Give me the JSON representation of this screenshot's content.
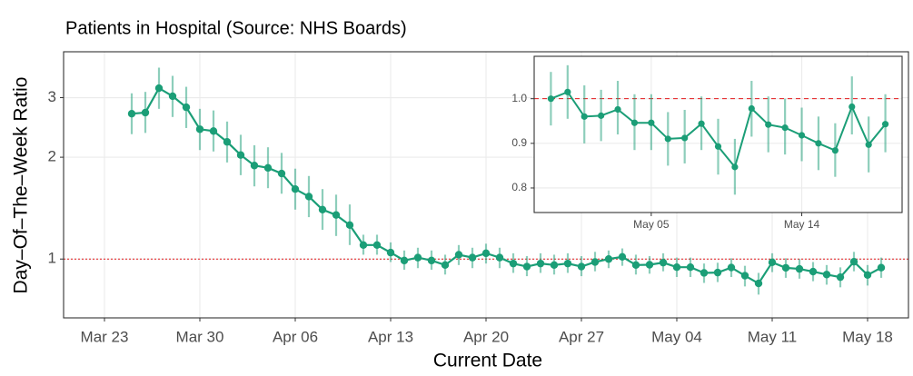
{
  "chart_data": [
    {
      "type": "line",
      "title": "Patients in Hospital (Source: NHS Boards)",
      "xlabel": "Current Date",
      "ylabel": "Day–Of–The–Week Ratio",
      "log_y": true,
      "grid": true,
      "color": "#1b9e77",
      "hline": 1,
      "xlim": [
        "Mar 20",
        "May 21"
      ],
      "xticks": [
        "Mar 23",
        "Mar 30",
        "Apr 06",
        "Apr 13",
        "Apr 20",
        "Apr 27",
        "May 04",
        "May 11",
        "May 18"
      ],
      "ylim": [
        0.67,
        4.1
      ],
      "yticks": [
        1,
        2,
        3
      ],
      "x": [
        "Mar 25",
        "Mar 26",
        "Mar 27",
        "Mar 28",
        "Mar 29",
        "Mar 30",
        "Mar 31",
        "Apr 1",
        "Apr 2",
        "Apr 3",
        "Apr 4",
        "Apr 5",
        "Apr 6",
        "Apr 7",
        "Apr 8",
        "Apr 9",
        "Apr 10",
        "Apr 11",
        "Apr 12",
        "Apr 13",
        "Apr 14",
        "Apr 15",
        "Apr 16",
        "Apr 17",
        "Apr 18",
        "Apr 19",
        "Apr 20",
        "Apr 21",
        "Apr 22",
        "Apr 23",
        "Apr 24",
        "Apr 25",
        "Apr 26",
        "Apr 27",
        "Apr 28",
        "Apr 29",
        "Apr 30",
        "May 1",
        "May 2",
        "May 3",
        "May 4",
        "May 5",
        "May 6",
        "May 7",
        "May 8",
        "May 9",
        "May 10",
        "May 11",
        "May 12",
        "May 13",
        "May 14",
        "May 15",
        "May 16",
        "May 17",
        "May 18",
        "May 19"
      ],
      "values": [
        2.69,
        2.71,
        3.2,
        3.03,
        2.81,
        2.42,
        2.39,
        2.22,
        2.03,
        1.89,
        1.86,
        1.79,
        1.61,
        1.53,
        1.4,
        1.35,
        1.26,
        1.1,
        1.1,
        1.045,
        0.99,
        1.01,
        0.99,
        0.96,
        1.03,
        1.01,
        1.04,
        1.01,
        0.97,
        0.95,
        0.97,
        0.96,
        0.97,
        0.95,
        0.98,
        1.0,
        1.015,
        0.96,
        0.962,
        0.976,
        0.946,
        0.946,
        0.91,
        0.912,
        0.944,
        0.893,
        0.847,
        0.978,
        0.942,
        0.935,
        0.918,
        0.9,
        0.884,
        0.982,
        0.897,
        0.943
      ],
      "lower": [
        2.34,
        2.36,
        2.78,
        2.63,
        2.44,
        2.1,
        2.08,
        1.93,
        1.77,
        1.64,
        1.62,
        1.56,
        1.4,
        1.33,
        1.22,
        1.17,
        1.1,
        1.03,
        1.03,
        0.98,
        0.93,
        0.94,
        0.93,
        0.9,
        0.96,
        0.94,
        0.97,
        0.94,
        0.91,
        0.89,
        0.91,
        0.9,
        0.91,
        0.89,
        0.92,
        0.94,
        0.955,
        0.9,
        0.905,
        0.92,
        0.885,
        0.885,
        0.85,
        0.855,
        0.885,
        0.83,
        0.785,
        0.915,
        0.88,
        0.875,
        0.86,
        0.84,
        0.825,
        0.92,
        0.835,
        0.88
      ],
      "upper": [
        3.09,
        3.12,
        3.68,
        3.48,
        3.23,
        2.78,
        2.75,
        2.55,
        2.33,
        2.17,
        2.14,
        2.06,
        1.85,
        1.76,
        1.61,
        1.55,
        1.45,
        1.18,
        1.18,
        1.12,
        1.06,
        1.08,
        1.06,
        1.03,
        1.1,
        1.08,
        1.11,
        1.08,
        1.04,
        1.02,
        1.04,
        1.03,
        1.04,
        1.02,
        1.05,
        1.06,
        1.075,
        1.03,
        1.02,
        1.04,
        1.01,
        1.01,
        0.97,
        0.975,
        1.005,
        0.955,
        0.91,
        1.04,
        1.005,
        1.0,
        0.98,
        0.96,
        0.945,
        1.05,
        0.96,
        1.01
      ]
    },
    {
      "type": "line",
      "log_y": false,
      "grid": true,
      "color": "#1b9e77",
      "hline": 1,
      "xlim": [
        "Apr 28",
        "May 20"
      ],
      "xticks": [
        "May 05",
        "May 14"
      ],
      "ylim": [
        0.745,
        1.095
      ],
      "yticks": [
        {
          "value": 1,
          "label": "1.0"
        },
        0.9,
        0.8
      ],
      "x": [
        "Apr 29",
        "Apr 30",
        "May 1",
        "May 2",
        "May 3",
        "May 4",
        "May 5",
        "May 6",
        "May 7",
        "May 8",
        "May 9",
        "May 10",
        "May 11",
        "May 12",
        "May 13",
        "May 14",
        "May 15",
        "May 16",
        "May 17",
        "May 18",
        "May 19"
      ],
      "values": [
        1.0,
        1.015,
        0.96,
        0.962,
        0.976,
        0.946,
        0.946,
        0.91,
        0.912,
        0.944,
        0.893,
        0.847,
        0.978,
        0.942,
        0.935,
        0.918,
        0.9,
        0.884,
        0.982,
        0.897,
        0.943
      ],
      "lower": [
        0.94,
        0.955,
        0.9,
        0.905,
        0.92,
        0.885,
        0.885,
        0.85,
        0.855,
        0.885,
        0.83,
        0.785,
        0.915,
        0.88,
        0.875,
        0.86,
        0.84,
        0.825,
        0.92,
        0.835,
        0.88
      ],
      "upper": [
        1.06,
        1.075,
        1.03,
        1.02,
        1.04,
        1.01,
        1.01,
        0.97,
        0.975,
        1.005,
        0.955,
        0.91,
        1.04,
        1.005,
        1.0,
        0.98,
        0.96,
        0.945,
        1.05,
        0.96,
        1.01
      ]
    }
  ]
}
